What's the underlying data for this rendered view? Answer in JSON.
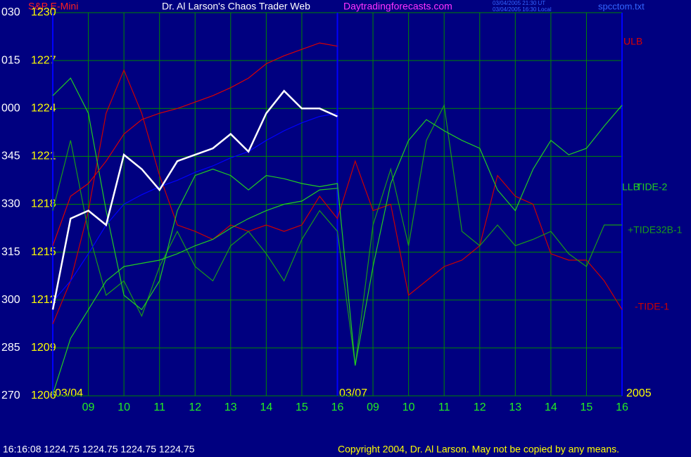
{
  "chart_data": {
    "type": "line",
    "title": "Dr. Al Larson's Chaos Trader Web",
    "subtitle": "S&P E-Mini",
    "website": "Daytradingforecasts.com",
    "timestamps": [
      "03/04/2005 21:30 UT",
      "03/04/2005 16:30 Local"
    ],
    "filename": "spcctom.txt",
    "ylim": [
      1206,
      1230
    ],
    "yticks": [
      1206,
      1209,
      1212,
      1215,
      1218,
      1221,
      1224,
      1227,
      1230
    ],
    "angle_labels": [
      "270",
      "285",
      "300",
      "315",
      "330",
      "345",
      "000",
      "015",
      "030"
    ],
    "grid": true,
    "categories": [
      null,
      null,
      "09",
      null,
      "10",
      null,
      "11",
      null,
      "12",
      null,
      "13",
      null,
      "14",
      null,
      "15",
      null,
      "16",
      null,
      "09",
      null,
      "10",
      null,
      "11",
      null,
      "12",
      null,
      "13",
      null,
      "14",
      null,
      "15",
      null,
      "16"
    ],
    "date_labels": [
      "03/04",
      "03/07",
      "2005"
    ],
    "series": [
      {
        "color": "#ffffff",
        "values": [
          1211.4,
          1217.1,
          1217.6,
          1216.7,
          1221.1,
          1220.2,
          1218.9,
          1220.7,
          1221.1,
          1221.5,
          1222.4,
          1221.3,
          1223.7,
          1225.1,
          1224,
          1224,
          1223.5,
          null,
          null,
          null,
          null,
          null,
          null,
          null,
          null,
          null,
          null,
          null,
          null,
          null,
          null,
          null,
          null
        ]
      },
      {
        "color": "#0000ff",
        "values": [
          1211.9,
          1213.2,
          1214.9,
          1216.7,
          1218,
          1218.6,
          1219.1,
          1219.5,
          1220,
          1220.4,
          1220.9,
          1221.3,
          1222,
          1222.6,
          1223.1,
          1223.5,
          1223.7,
          null,
          null,
          null,
          null,
          null,
          null,
          null,
          null,
          null,
          null,
          null,
          null,
          null,
          null,
          null,
          null
        ]
      },
      {
        "name": "ULB",
        "color": "#dd0000",
        "values": [
          1215.4,
          1218.5,
          1219.3,
          1220.7,
          1222.4,
          1223.3,
          1223.7,
          1224,
          1224.4,
          1224.8,
          1225.3,
          1225.9,
          1226.8,
          1227.3,
          1227.7,
          1228.1,
          1227.9,
          null,
          null,
          null,
          null,
          null,
          null,
          null,
          null,
          null,
          null,
          null,
          null,
          null,
          null,
          null,
          null
        ]
      },
      {
        "name": "LLB",
        "color": "#22cc22",
        "values": [
          1206.1,
          1209.6,
          1211.4,
          1213.2,
          1214.1,
          1214.3,
          1214.5,
          1214.9,
          1215.4,
          1215.8,
          1216.5,
          1217.1,
          1217.6,
          1218,
          1218.2,
          1218.9,
          1219,
          null,
          null,
          null,
          null,
          null,
          null,
          null,
          null,
          null,
          null,
          null,
          null,
          null,
          null,
          null,
          null
        ]
      },
      {
        "name": "TIDE-2",
        "color": "#22cc22",
        "values": [
          1224.8,
          1225.9,
          1223.7,
          1217.6,
          1212.3,
          1211.4,
          1213.2,
          1217.6,
          1219.8,
          1220.2,
          1219.8,
          1218.9,
          1219.8,
          1219.6,
          1219.3,
          1219.1,
          1219.3,
          1207.9,
          1214.1,
          1219.3,
          1222,
          1223.3,
          1222.6,
          1222,
          1221.5,
          1218.9,
          1217.6,
          1220.2,
          1222,
          1221.1,
          1221.5,
          1222.9,
          1224.2
        ]
      },
      {
        "name": "+TIDE32B-1",
        "color": "#1a9a1a",
        "values": [
          1217.6,
          1222,
          1216.3,
          1212.3,
          1213.2,
          1211,
          1214.1,
          1216.3,
          1214.1,
          1213.2,
          1215.4,
          1216.3,
          1214.9,
          1213.2,
          1215.8,
          1217.6,
          1216.3,
          1207.9,
          1216.7,
          1220.2,
          1215.4,
          1222,
          1224.2,
          1216.3,
          1215.4,
          1216.7,
          1215.4,
          1215.8,
          1216.3,
          1214.9,
          1214.1,
          1216.7,
          1216.7
        ]
      },
      {
        "name": "-TIDE-1",
        "color": "#cc0000",
        "values": [
          1210.5,
          1213.2,
          1217.6,
          1223.7,
          1226.4,
          1223.7,
          1219.8,
          1216.7,
          1216.3,
          1215.8,
          1216.7,
          1216.3,
          1216.7,
          1216.3,
          1216.7,
          1218.5,
          1217.1,
          1220.7,
          1217.6,
          1218,
          1212.3,
          1213.2,
          1214.1,
          1214.5,
          1215.4,
          1219.8,
          1218.5,
          1218,
          1214.9,
          1214.5,
          1214.5,
          1213.2,
          1211.4
        ]
      }
    ],
    "footer": {
      "quote": "16:16:08  1224.75 1224.75 1224.75 1224.75",
      "copyright": "Copyright 2004, Dr. Al Larson. May not be copied by any means."
    }
  }
}
